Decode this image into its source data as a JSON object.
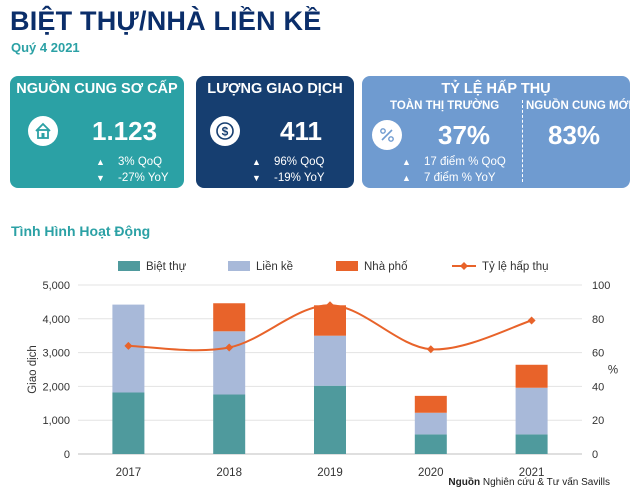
{
  "header": {
    "title": "BIỆT THỰ/NHÀ LIỀN KỀ",
    "subtitle": "Quý 4 2021"
  },
  "cards": {
    "supply": {
      "title": "NGUỒN CUNG SƠ CẤP",
      "icon": "house-icon",
      "value": "1.123",
      "up": "3% QoQ",
      "down": "-27% YoY",
      "color": "#2ba1a5"
    },
    "transactions": {
      "title": "LƯỢNG GIAO DỊCH",
      "icon": "dollar-icon",
      "value": "411",
      "up": "96% QoQ",
      "down": "-19% YoY",
      "color": "#163e70"
    },
    "absorption": {
      "title": "TỶ LỆ HẤP THỤ",
      "icon": "percent-icon",
      "market_label": "TOÀN THỊ TRƯỜNG",
      "market_value": "37%",
      "new_label": "NGUỒN CUNG MỚI",
      "new_value": "83%",
      "up1": "17 điểm % QoQ",
      "up2": "7 điểm % YoY",
      "color": "#6f9bd0"
    }
  },
  "section_title": "Tình Hình Hoạt Động",
  "source": {
    "bold": "Nguồn",
    "text": " Nghiên cứu & Tư vấn Savills"
  },
  "chart_data": {
    "type": "bar",
    "stacked": true,
    "categories": [
      "2017",
      "2018",
      "2019",
      "2020",
      "2021"
    ],
    "series": [
      {
        "name": "Biệt thự",
        "values": [
          1820,
          1760,
          2020,
          580,
          580
        ],
        "color": "#4f9a9d"
      },
      {
        "name": "Liền kề",
        "values": [
          2600,
          1870,
          1480,
          640,
          1380
        ],
        "color": "#a8b9d9"
      },
      {
        "name": "Nhà phố",
        "values": [
          0,
          830,
          900,
          500,
          680
        ],
        "color": "#e8632a"
      }
    ],
    "line": {
      "name": "Tỷ lệ hấp thụ",
      "values": [
        64,
        63,
        88,
        62,
        79
      ],
      "color": "#e8632a",
      "axis": "right"
    },
    "ylabel": "Giao dịch",
    "ylim": [
      0,
      5000
    ],
    "yticks": [
      "0",
      "1,000",
      "2,000",
      "3,000",
      "4,000",
      "5,000"
    ],
    "y2label": "%",
    "y2lim": [
      0,
      100
    ],
    "y2ticks": [
      "0",
      "20",
      "40",
      "60",
      "80",
      "100"
    ],
    "grid": true,
    "legend": "top"
  }
}
